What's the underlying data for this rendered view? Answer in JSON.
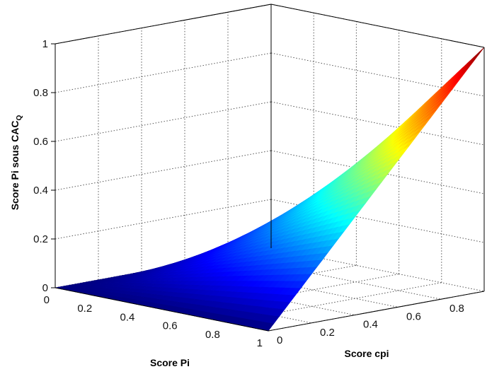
{
  "chart_data": {
    "type": "surface",
    "title": "",
    "xlabel": "Score Pi",
    "ylabel": "Score cpi",
    "zlabel_main": "Score Pi sous CAC",
    "zlabel_sub": "Q",
    "x_ticks": [
      "0",
      "0.2",
      "0.4",
      "0.6",
      "0.8",
      "1"
    ],
    "y_ticks": [
      "0",
      "0.2",
      "0.4",
      "0.6",
      "0.8"
    ],
    "z_ticks": [
      "0",
      "0.2",
      "0.4",
      "0.6",
      "0.8",
      "1"
    ],
    "xlim": [
      0,
      1
    ],
    "ylim": [
      0,
      1
    ],
    "zlim": [
      0,
      1
    ],
    "grid": true,
    "colormap": "jet",
    "function": "z = x * y",
    "sample_points": [
      {
        "x": 0,
        "y": 0,
        "z": 0
      },
      {
        "x": 1,
        "y": 0,
        "z": 0
      },
      {
        "x": 0,
        "y": 1,
        "z": 0
      },
      {
        "x": 0.5,
        "y": 0.5,
        "z": 0.25
      },
      {
        "x": 1,
        "y": 1,
        "z": 1
      }
    ]
  }
}
